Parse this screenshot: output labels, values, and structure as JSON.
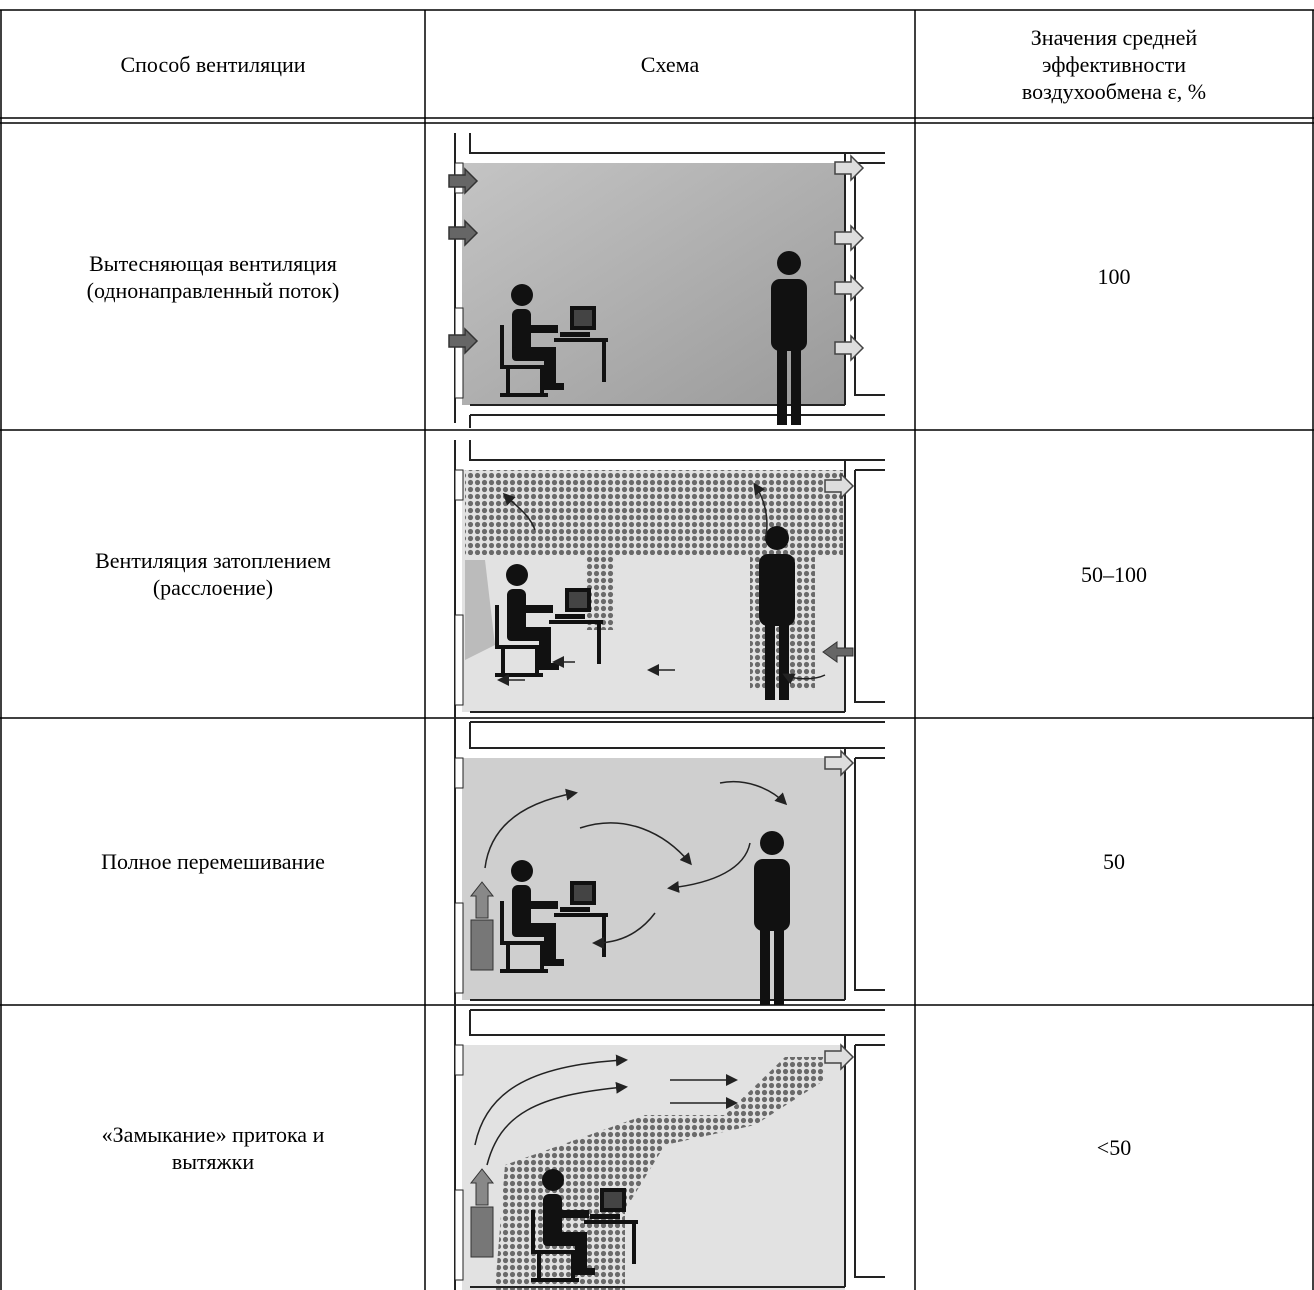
{
  "table": {
    "header": [
      [
        "Способ вентиляции"
      ],
      [
        "Схема"
      ],
      [
        "Значения средней",
        "эффективности",
        "воздухообмена ε, %"
      ]
    ],
    "rows": [
      [
        [
          "Вытесняющая вентиляция",
          "(однонаправленный поток)"
        ],
        [
          "100"
        ]
      ],
      [
        [
          "Вентиляция затоплением",
          "(расслоение)"
        ],
        [
          "50–100"
        ]
      ],
      [
        [
          "Полное перемешивание"
        ],
        [
          "50"
        ]
      ],
      [
        [
          "«Замыкание» притока и",
          "вытяжки"
        ],
        [
          "<50"
        ]
      ]
    ]
  }
}
